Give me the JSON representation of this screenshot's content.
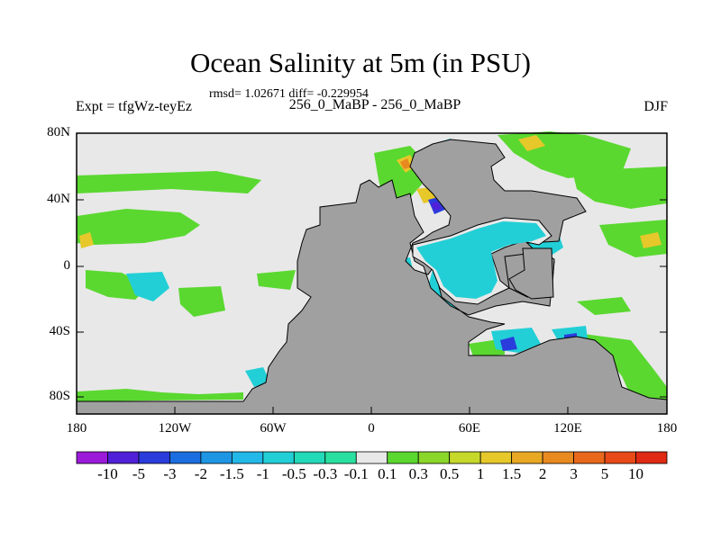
{
  "title": "Ocean Salinity at 5m (in PSU)",
  "stats_line": "rmsd= 1.02671 diff= -0.229954",
  "left_label": "Expt = tfgWz-teyEz",
  "center_label": "256_0_MaBP - 256_0_MaBP",
  "right_label": "DJF",
  "y_ticks": [
    "80N",
    "40N",
    "0",
    "40S",
    "80S"
  ],
  "x_ticks": [
    "180",
    "120W",
    "60W",
    "0",
    "60E",
    "120E",
    "180"
  ],
  "colorbar": {
    "labels": [
      "-10",
      "-5",
      "-3",
      "-2",
      "-1.5",
      "-1",
      "-0.5",
      "-0.3",
      "-0.1",
      "0.1",
      "0.3",
      "0.5",
      "1",
      "1.5",
      "2",
      "3",
      "5",
      "10"
    ],
    "colors": [
      "#9b1bd9",
      "#5020d8",
      "#2a3cdc",
      "#1b6ee0",
      "#1e96e4",
      "#22b8e8",
      "#22cfd6",
      "#22d9b8",
      "#2ae0a0",
      "#e8e8e8",
      "#5ad830",
      "#8ad62a",
      "#c6d82a",
      "#e6c82a",
      "#e8a824",
      "#e88a20",
      "#e8681c",
      "#e84a18",
      "#e02a14"
    ]
  },
  "map_colors": {
    "land": "#a0a0a0",
    "ocean_neutral": "#e8e8e8",
    "positive_small": "#5ad830",
    "negative_small": "#22cfd6",
    "negative_large": "#5020d8"
  }
}
